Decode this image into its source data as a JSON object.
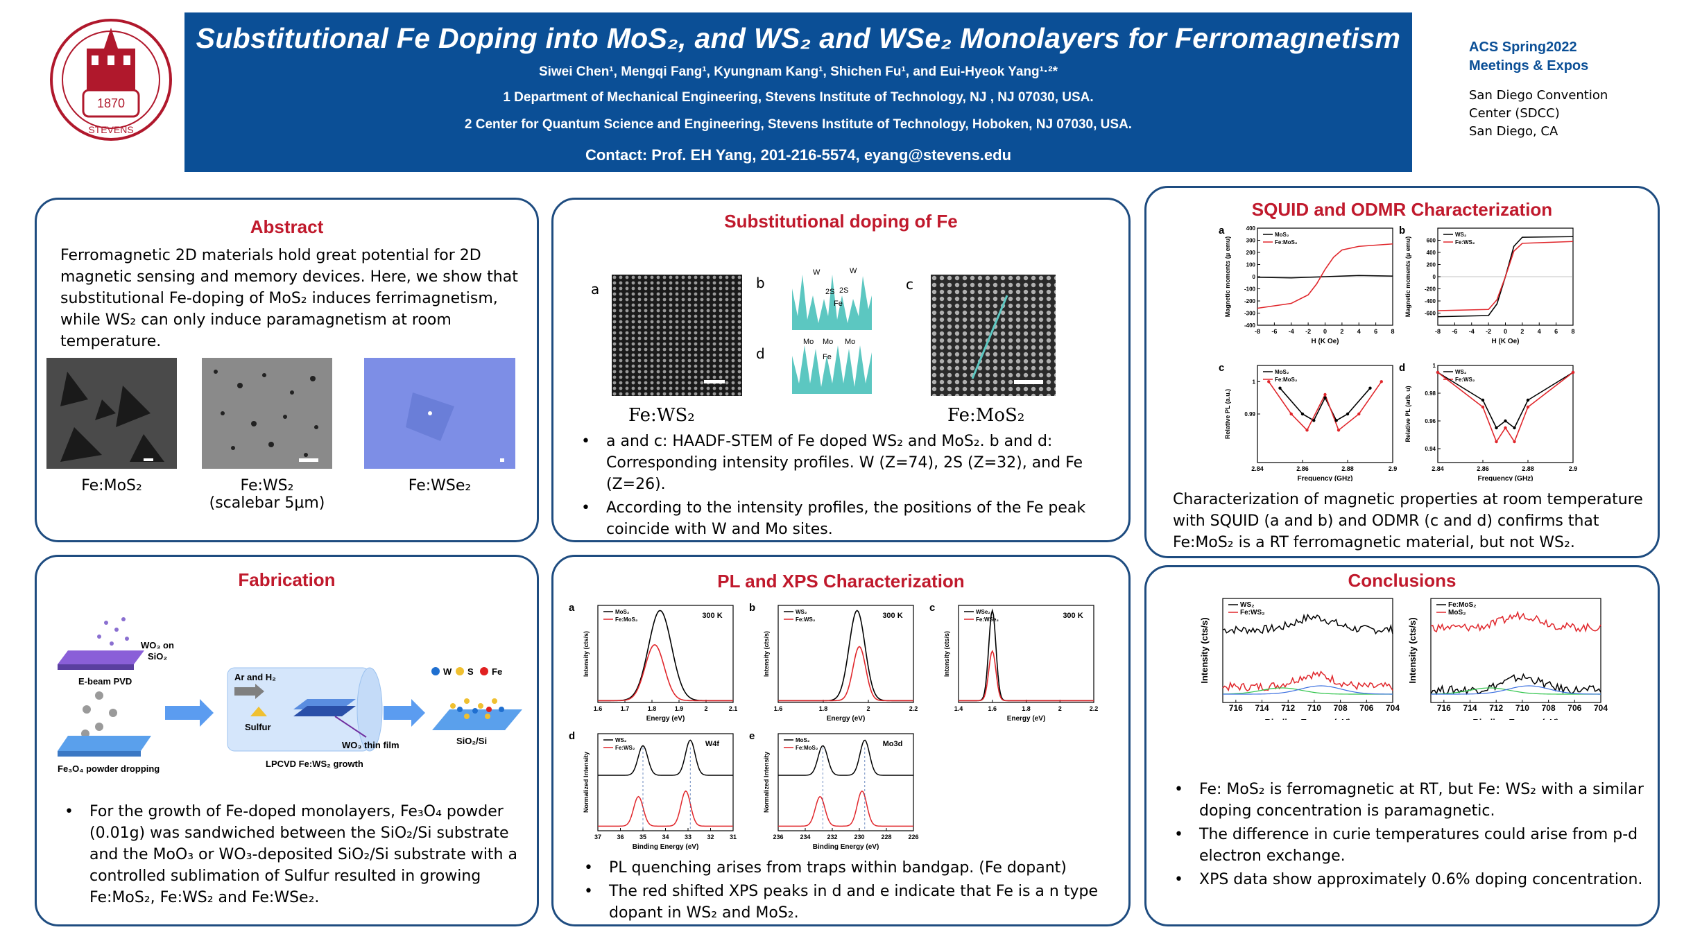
{
  "header": {
    "title": "Substitutional Fe Doping into MoS₂, and WS₂ and WSe₂ Monolayers for Ferromagnetism",
    "authors": "Siwei Chen¹, Mengqi Fang¹, Kyungnam Kang¹, Shichen Fu¹, and Eui-Hyeok Yang¹·²*",
    "affiliation1": "1 Department of Mechanical Engineering, Stevens Institute of Technology, NJ , NJ 07030, USA.",
    "affiliation2": "2 Center for Quantum Science and Engineering, Stevens Institute of Technology, Hoboken, NJ 07030, USA.",
    "contact": "Contact: Prof. EH Yang, 201-216-5574, eyang@stevens.edu",
    "logo_year": "1870",
    "logo_name": "STEVENS",
    "conference_line1": "ACS Spring2022",
    "conference_line2": "Meetings  & Expos",
    "venue_line1": "San Diego Convention",
    "venue_line2": "Center (SDCC)",
    "venue_line3": "San Diego, CA"
  },
  "abstract": {
    "title": "Abstract",
    "text_line1": "Ferromagnetic 2D materials hold great potential for 2D",
    "text_line2": "magnetic sensing and memory devices. Here, we show that",
    "text_line3": "substitutional Fe-doping of MoS₂  induces ferrimagnetism,",
    "text_line4": "while WS₂ can only induce paramagnetism at room",
    "text_line5": "temperature.",
    "cap1": "Fe:MoS₂",
    "cap2a": "Fe:WS₂",
    "cap2b": "(scalebar 5μm)",
    "cap3": "Fe:WSe₂"
  },
  "doping": {
    "title": "Substitutional doping of Fe",
    "label_a": "a",
    "label_b": "b",
    "label_c": "c",
    "label_d": "d",
    "img_cap1": "Fe:WS₂",
    "img_cap2": "Fe:MoS₂",
    "prof_b_w1": "W",
    "prof_b_w2": "W",
    "prof_b_2s1": "2S",
    "prof_b_2s2": "2S",
    "prof_b_fe": "Fe",
    "prof_d_mo1": "Mo",
    "prof_d_mo2": "Mo",
    "prof_d_mo3": "Mo",
    "prof_d_fe": "Fe",
    "bullet1": "a and c: HAADF-STEM of Fe doped WS₂ and MoS₂. b and d: Corresponding intensity profiles.  W (Z=74), 2S (Z=32), and Fe (Z=26).",
    "bullet2": "According to the intensity profiles, the positions of the Fe peak coincide with  W and Mo sites."
  },
  "squid": {
    "title": "SQUID and ODMR Characterization",
    "text": "Characterization of magnetic properties at room temperature with SQUID (a and b) and ODMR (c and d) confirms that Fe:MoS₂ is a RT ferromagnetic material, but not WS₂."
  },
  "fabrication": {
    "title": "Fabrication",
    "wo3_label1": "WO₃ on",
    "wo3_label2": "SiO₂",
    "ebeam": "E-beam PVD",
    "fe3o4": "Fe₃O₄ powder dropping",
    "ar_h2": "Ar and H₂",
    "sulfur": "Sulfur",
    "wo3_film": "WO₃ thin film",
    "lpcvd": "LPCVD Fe:WS₂ growth",
    "legend_w": "W",
    "legend_s": "S",
    "legend_fe": "Fe",
    "sio2si": "SiO₂/Si",
    "bullet": "For the growth of Fe-doped  monolayers, Fe₃O₄ powder (0.01g) was sandwiched between the SiO₂/Si substrate and the MoO₃ or WO₃-deposited SiO₂/Si substrate with a controlled sublimation of Sulfur resulted in growing Fe:MoS₂, Fe:WS₂ and Fe:WSe₂."
  },
  "plxps": {
    "title": "PL and XPS Characterization",
    "bullet1": "PL quenching arises from traps within bandgap. (Fe dopant)",
    "bullet2": "The red shifted XPS peaks in d and e indicate that Fe is a n type dopant in WS₂ and MoS₂."
  },
  "conclusions": {
    "title": "Conclusions",
    "bullet1": "Fe: MoS₂ is ferromagnetic at RT, but Fe: WS₂ with a similar doping concentration is paramagnetic.",
    "bullet2": "The difference in curie temperatures could arise from p-d electron exchange.",
    "bullet3": "XPS data show approximately 0.6% doping concentration."
  },
  "chart_data": [
    {
      "id": "squid-a",
      "type": "line",
      "label": "a",
      "xlabel": "H (K Oe)",
      "ylabel": "Magnetic moments (μ emu)",
      "xlim": [
        -8,
        8
      ],
      "ylim": [
        -400,
        400
      ],
      "xticks": [
        -8,
        -6,
        -4,
        -2,
        0,
        2,
        4,
        6,
        8
      ],
      "yticks": [
        -400,
        -300,
        -200,
        -100,
        0,
        100,
        200,
        300,
        400
      ],
      "series": [
        {
          "name": "MoS₂",
          "color": "#000000",
          "x": [
            -8,
            -4,
            -2,
            0,
            2,
            4,
            8
          ],
          "y": [
            -5,
            -10,
            -5,
            0,
            5,
            10,
            5
          ]
        },
        {
          "name": "Fe:MoS₂",
          "color": "#e0262b",
          "x": [
            -8,
            -4,
            -2,
            -1,
            0,
            1,
            2,
            4,
            8
          ],
          "y": [
            -260,
            -220,
            -150,
            -60,
            60,
            160,
            220,
            250,
            270
          ]
        }
      ]
    },
    {
      "id": "squid-b",
      "type": "line",
      "label": "b",
      "xlabel": "H (K Oe)",
      "ylabel": "Magnetic moments (μ emu)",
      "xlim": [
        -8,
        8
      ],
      "ylim": [
        -800,
        800
      ],
      "xticks": [
        -8,
        -6,
        -4,
        -2,
        0,
        2,
        4,
        6,
        8
      ],
      "yticks": [
        -600,
        -400,
        -200,
        0,
        200,
        400,
        600
      ],
      "series": [
        {
          "name": "WS₂",
          "color": "#000000",
          "x": [
            -8,
            -2,
            -1,
            0,
            1,
            2,
            8
          ],
          "y": [
            -660,
            -640,
            -450,
            0,
            500,
            650,
            660
          ]
        },
        {
          "name": "Fe:WS₂",
          "color": "#e0262b",
          "x": [
            -8,
            -2,
            -1,
            0,
            1,
            2,
            8
          ],
          "y": [
            -560,
            -540,
            -380,
            0,
            420,
            550,
            580
          ]
        }
      ]
    },
    {
      "id": "odmr-c",
      "type": "scatter",
      "label": "c",
      "xlabel": "Frequency (GHz)",
      "ylabel": "Relative PL (a.u.)",
      "xlim": [
        2.84,
        2.9
      ],
      "ylim": [
        0.975,
        1.005
      ],
      "xticks": [
        2.84,
        2.86,
        2.88,
        2.9
      ],
      "yticks": [
        0.99,
        1.0
      ],
      "series": [
        {
          "name": "MoS₂",
          "color": "#000000",
          "x": [
            2.85,
            2.86,
            2.865,
            2.87,
            2.875,
            2.88,
            2.89
          ],
          "y": [
            0.998,
            0.99,
            0.988,
            0.995,
            0.988,
            0.99,
            0.998
          ]
        },
        {
          "name": "Fe:MoS₂",
          "color": "#e0262b",
          "x": [
            2.845,
            2.855,
            2.862,
            2.87,
            2.876,
            2.885,
            2.895
          ],
          "y": [
            1.0,
            0.99,
            0.985,
            0.996,
            0.985,
            0.99,
            1.0
          ]
        }
      ]
    },
    {
      "id": "odmr-d",
      "type": "scatter",
      "label": "d",
      "xlabel": "Frequency (GHz)",
      "ylabel": "Relative PL (arb. u)",
      "xlim": [
        2.84,
        2.9
      ],
      "ylim": [
        0.93,
        1.0
      ],
      "xticks": [
        2.84,
        2.86,
        2.88,
        2.9
      ],
      "yticks": [
        0.94,
        0.96,
        0.98,
        1.0
      ],
      "series": [
        {
          "name": "WS₂",
          "color": "#000000",
          "x": [
            2.84,
            2.86,
            2.866,
            2.87,
            2.874,
            2.88,
            2.9
          ],
          "y": [
            0.995,
            0.975,
            0.955,
            0.96,
            0.955,
            0.975,
            0.995
          ]
        },
        {
          "name": "Fe:WS₂",
          "color": "#e0262b",
          "x": [
            2.84,
            2.86,
            2.866,
            2.87,
            2.874,
            2.88,
            2.9
          ],
          "y": [
            0.995,
            0.97,
            0.945,
            0.955,
            0.945,
            0.97,
            0.995
          ]
        }
      ]
    },
    {
      "id": "pl-a",
      "type": "line",
      "label": "a",
      "annotation": "300 K",
      "xlabel": "Energy (eV)",
      "ylabel": "Intensity (cts/s)",
      "xlim": [
        1.6,
        2.1
      ],
      "xticks": [
        1.6,
        1.7,
        1.8,
        1.9,
        2.0,
        2.1
      ],
      "series": [
        {
          "name": "MoS₂",
          "color": "#000000",
          "peak": 1.83,
          "height": 1.0,
          "width": 0.06
        },
        {
          "name": "Fe:MoS₂",
          "color": "#e0262b",
          "peak": 1.81,
          "height": 0.62,
          "width": 0.05
        }
      ]
    },
    {
      "id": "pl-b",
      "type": "line",
      "label": "b",
      "annotation": "300 K",
      "xlabel": "Energy (eV)",
      "ylabel": "Intensity (cts/s)",
      "xlim": [
        1.6,
        2.2
      ],
      "xticks": [
        1.6,
        1.8,
        2.0,
        2.2
      ],
      "series": [
        {
          "name": "WS₂",
          "color": "#000000",
          "peak": 1.95,
          "height": 1.0,
          "width": 0.05
        },
        {
          "name": "Fe:WS₂",
          "color": "#e0262b",
          "peak": 1.96,
          "height": 0.6,
          "width": 0.04
        }
      ]
    },
    {
      "id": "pl-c",
      "type": "line",
      "label": "c",
      "annotation": "300 K",
      "xlabel": "Energy (eV)",
      "ylabel": "Intensity (cts/s)",
      "xlim": [
        1.4,
        2.2
      ],
      "xticks": [
        1.4,
        1.6,
        1.8,
        2.0,
        2.2
      ],
      "series": [
        {
          "name": "WSe₂",
          "color": "#000000",
          "peak": 1.6,
          "height": 1.0,
          "width": 0.03
        },
        {
          "name": "Fe:WSe₂",
          "color": "#e0262b",
          "peak": 1.6,
          "height": 0.55,
          "width": 0.03
        }
      ]
    },
    {
      "id": "xps-d",
      "type": "line",
      "label": "d",
      "annotation": "W4f",
      "xlabel": "Binding Energy (eV)",
      "ylabel": "Normalized Intensity",
      "xlim": [
        37,
        31
      ],
      "xticks": [
        37,
        36,
        35,
        34,
        33,
        32,
        31
      ],
      "series": [
        {
          "name": "WS₂",
          "color": "#000000",
          "peaks": [
            35.0,
            32.9
          ],
          "offset": 0.55
        },
        {
          "name": "Fe:WS₂",
          "color": "#e0262b",
          "peaks": [
            35.2,
            33.1
          ],
          "offset": 0.0
        }
      ]
    },
    {
      "id": "xps-e",
      "type": "line",
      "label": "e",
      "annotation": "Mo3d",
      "xlabel": "Binding Energy (eV)",
      "ylabel": "Normalized Intensity",
      "xlim": [
        236,
        226
      ],
      "xticks": [
        236,
        234,
        232,
        230,
        228,
        226
      ],
      "series": [
        {
          "name": "MoS₂",
          "color": "#000000",
          "peaks": [
            232.7,
            229.6
          ],
          "offset": 0.55
        },
        {
          "name": "Fe:MoS₂",
          "color": "#e0262b",
          "peaks": [
            232.9,
            229.8
          ],
          "offset": 0.0
        }
      ]
    },
    {
      "id": "concl-1",
      "type": "line",
      "xlabel": "Binding Energy (eV)",
      "ylabel": "Intensity (cts/s)",
      "xlim": [
        717,
        704
      ],
      "xticks": [
        716,
        714,
        712,
        710,
        708,
        706,
        704
      ],
      "series": [
        {
          "name": "WS₂",
          "color": "#000000",
          "level": 0.7
        },
        {
          "name": "Fe:WS₂",
          "color": "#e0262b",
          "level": 0.15
        }
      ]
    },
    {
      "id": "concl-2",
      "type": "line",
      "xlabel": "Binding Energy (eV)",
      "ylabel": "Intensity (cts/s)",
      "xlim": [
        717,
        704
      ],
      "xticks": [
        716,
        714,
        712,
        710,
        708,
        706,
        704
      ],
      "series": [
        {
          "name": "Fe:MoS₂",
          "color": "#000000",
          "level": 0.12
        },
        {
          "name": "MoS₂",
          "color": "#e0262b",
          "level": 0.72
        }
      ]
    }
  ]
}
